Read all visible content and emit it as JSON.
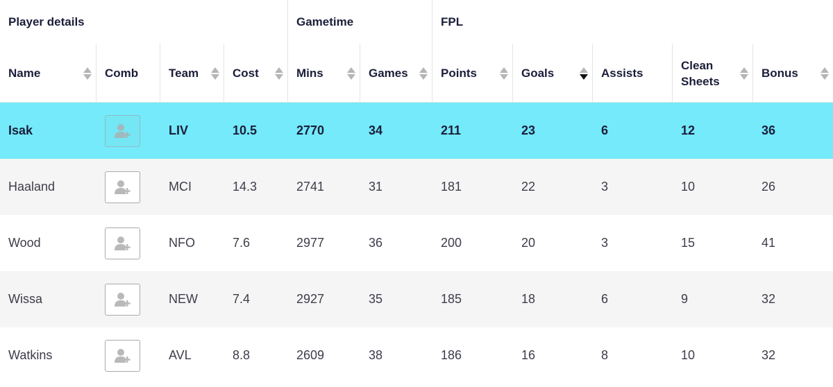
{
  "groups": [
    {
      "label": "Player details"
    },
    {
      "label": "Gametime"
    },
    {
      "label": "FPL"
    }
  ],
  "columns": [
    {
      "label": "Name",
      "sortable": true
    },
    {
      "label": "Comb",
      "sortable": false
    },
    {
      "label": "Team",
      "sortable": true
    },
    {
      "label": "Cost",
      "sortable": true
    },
    {
      "label": "Mins",
      "sortable": true
    },
    {
      "label": "Games",
      "sortable": true
    },
    {
      "label": "Points",
      "sortable": true
    },
    {
      "label": "Goals",
      "sortable": true,
      "sorted": "descending"
    },
    {
      "label": "Assists",
      "sortable": false
    },
    {
      "label": "Clean\nSheets",
      "sortable": true
    },
    {
      "label": "Bonus",
      "sortable": true
    }
  ],
  "rows": [
    {
      "name": "Isak",
      "team": "LIV",
      "cost": "10.5",
      "mins": "2770",
      "games": "34",
      "points": "211",
      "goals": "23",
      "assists": "6",
      "clean_sheets": "12",
      "bonus": "36",
      "highlighted": true
    },
    {
      "name": "Haaland",
      "team": "MCI",
      "cost": "14.3",
      "mins": "2741",
      "games": "31",
      "points": "181",
      "goals": "22",
      "assists": "3",
      "clean_sheets": "10",
      "bonus": "26"
    },
    {
      "name": "Wood",
      "team": "NFO",
      "cost": "7.6",
      "mins": "2977",
      "games": "36",
      "points": "200",
      "goals": "20",
      "assists": "3",
      "clean_sheets": "15",
      "bonus": "41"
    },
    {
      "name": "Wissa",
      "team": "NEW",
      "cost": "7.4",
      "mins": "2927",
      "games": "35",
      "points": "185",
      "goals": "18",
      "assists": "6",
      "clean_sheets": "9",
      "bonus": "32"
    },
    {
      "name": "Watkins",
      "team": "AVL",
      "cost": "8.8",
      "mins": "2609",
      "games": "38",
      "points": "186",
      "goals": "16",
      "assists": "8",
      "clean_sheets": "10",
      "bonus": "32"
    }
  ],
  "colors": {
    "highlight_row": "#74eafa",
    "header_text": "#1b1e3a",
    "alt_row": "#f5f5f5"
  },
  "icons": {
    "comb_button": "add-user-icon",
    "sort": "sort-arrows-icon"
  }
}
